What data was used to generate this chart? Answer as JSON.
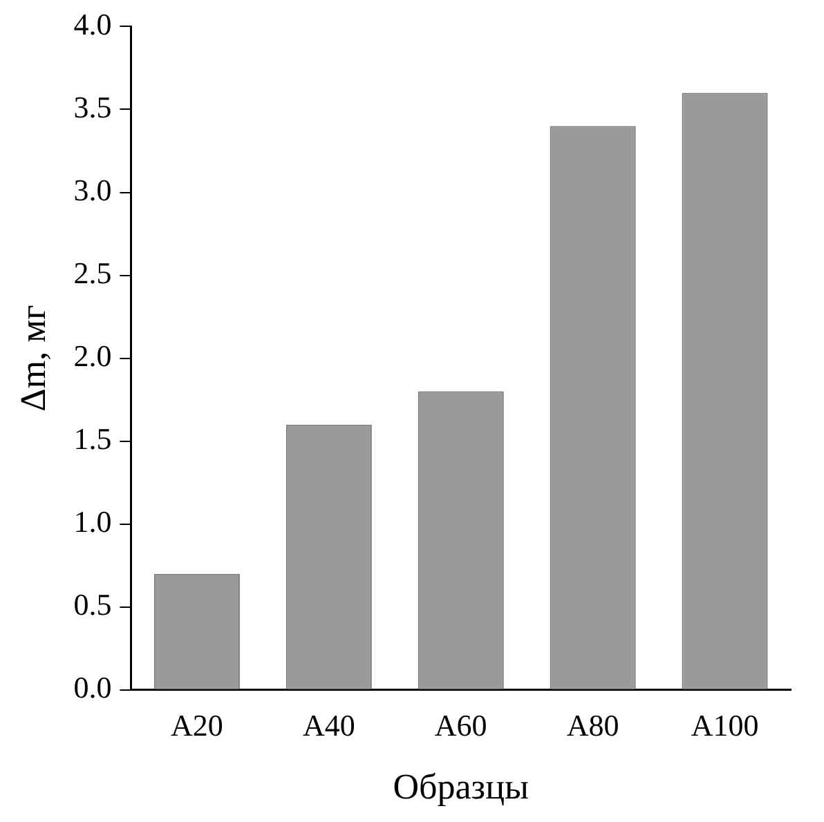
{
  "chart_data": {
    "type": "bar",
    "xlabel": "Образцы",
    "ylabel": "Δm, мг",
    "categories": [
      "A20",
      "A40",
      "A60",
      "A80",
      "A100"
    ],
    "values": [
      0.7,
      1.6,
      1.8,
      3.4,
      3.6
    ],
    "color": "#9a9a9a",
    "ylim": [
      0,
      4
    ],
    "yticks": [
      {
        "value": 0,
        "label": "0.0"
      },
      0.5,
      {
        "value": 1,
        "label": "1.0"
      },
      1.5,
      {
        "value": 2,
        "label": "2.0"
      },
      2.5,
      {
        "value": 3,
        "label": "3.0"
      },
      3.5,
      {
        "value": 4,
        "label": "4.0"
      }
    ],
    "grid": false,
    "legend": false
  }
}
